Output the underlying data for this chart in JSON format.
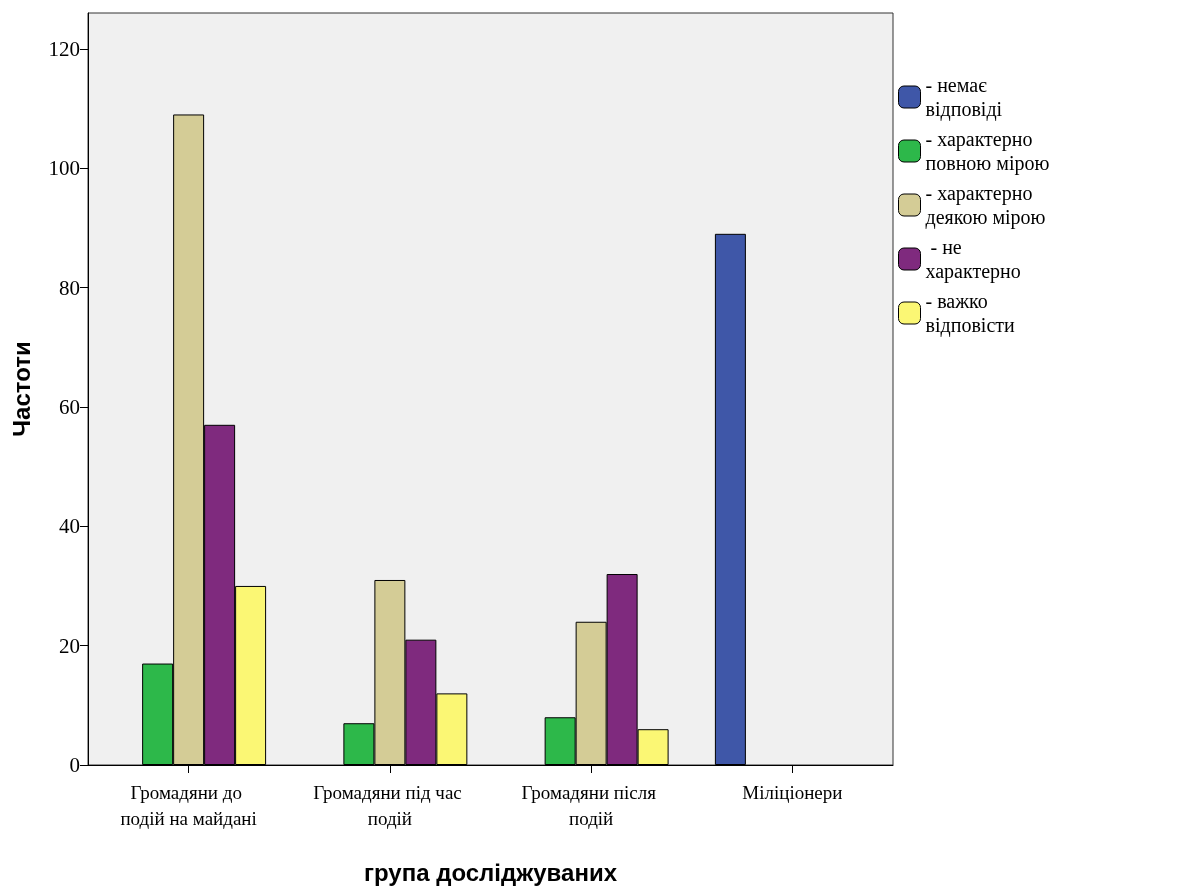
{
  "chart_data": {
    "type": "bar",
    "xlabel": "група досліджуваних",
    "ylabel": "Частоти",
    "categories": [
      "Громадяни до подій на майдані",
      "Громадяни під час подій",
      "Громадяни після подій",
      "Міліціонери"
    ],
    "series": [
      {
        "name": "- немає відповіді",
        "color": "#3f57a8",
        "values": [
          null,
          null,
          null,
          89
        ]
      },
      {
        "name": "- характерно повною мірою",
        "color": "#2db84a",
        "values": [
          17,
          7,
          8,
          null
        ]
      },
      {
        "name": "- характерно деякою мірою",
        "color": "#d4cc96",
        "values": [
          109,
          31,
          24,
          null
        ]
      },
      {
        "name": " - не характерно",
        "color": "#7f2a7e",
        "values": [
          57,
          21,
          32,
          null
        ]
      },
      {
        "name": "- важко відповісти",
        "color": "#fbf774",
        "values": [
          30,
          12,
          6,
          null
        ]
      }
    ],
    "ylim": [
      0,
      126
    ],
    "yticks": [
      0,
      20,
      40,
      60,
      80,
      100,
      120
    ],
    "grid": false,
    "legend": "right"
  }
}
